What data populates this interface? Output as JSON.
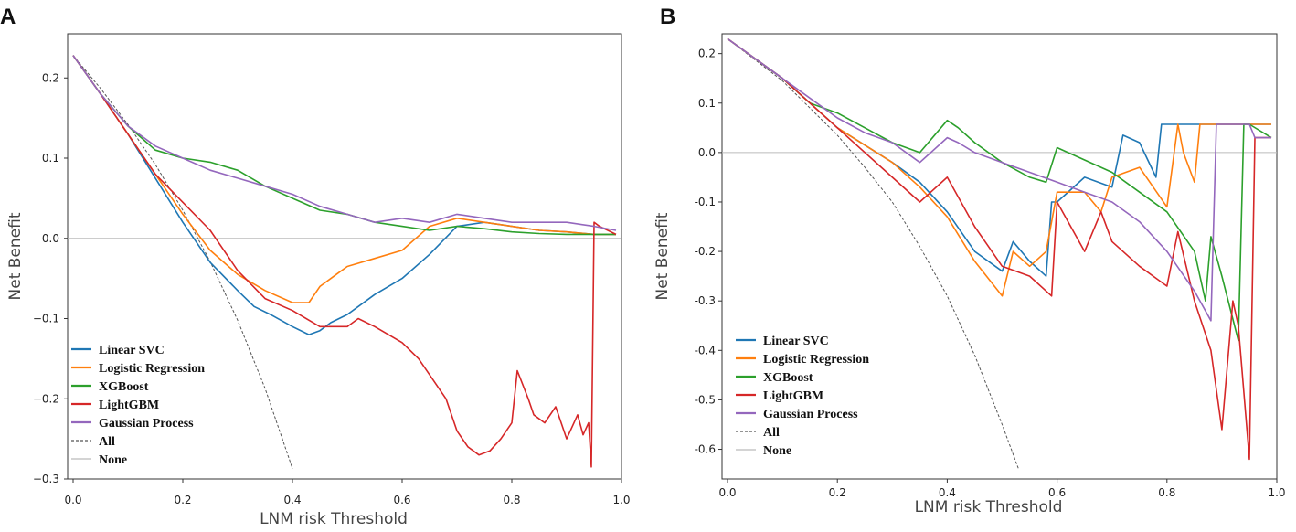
{
  "chart_data": [
    {
      "panel": "A",
      "type": "line",
      "title": "",
      "xlabel": "LNM risk Threshold",
      "ylabel": "Net Benefit",
      "xlim": [
        -0.01,
        1.0
      ],
      "ylim": [
        -0.3,
        0.255
      ],
      "xticks": [
        0.0,
        0.2,
        0.4,
        0.6,
        0.8,
        1.0
      ],
      "xtick_labels": [
        "0.0",
        "0.2",
        "0.4",
        "0.6",
        "0.8",
        "1.0"
      ],
      "yticks": [
        0.2,
        0.1,
        0.0,
        -0.1,
        -0.2,
        -0.3
      ],
      "ytick_labels": [
        "0.2",
        "0.1",
        "0.0",
        "−0.1",
        "−0.2",
        "−0.3"
      ],
      "legend_position": "lower-left",
      "series": [
        {
          "name": "Linear SVC",
          "color": "#1f77b4",
          "x": [
            0,
            0.05,
            0.1,
            0.15,
            0.2,
            0.25,
            0.3,
            0.33,
            0.36,
            0.4,
            0.43,
            0.45,
            0.47,
            0.5,
            0.55,
            0.6,
            0.65,
            0.7,
            0.75,
            0.8,
            0.85,
            0.9,
            0.95,
            0.99
          ],
          "y": [
            0.228,
            0.18,
            0.13,
            0.075,
            0.02,
            -0.03,
            -0.065,
            -0.085,
            -0.095,
            -0.11,
            -0.12,
            -0.115,
            -0.105,
            -0.095,
            -0.07,
            -0.05,
            -0.02,
            0.015,
            0.02,
            0.015,
            0.01,
            0.008,
            0.005,
            0.005
          ]
        },
        {
          "name": "Logistic Regression",
          "color": "#ff7f0e",
          "x": [
            0,
            0.05,
            0.1,
            0.15,
            0.2,
            0.25,
            0.3,
            0.35,
            0.4,
            0.43,
            0.45,
            0.48,
            0.5,
            0.55,
            0.6,
            0.65,
            0.7,
            0.75,
            0.8,
            0.85,
            0.9,
            0.95,
            0.99
          ],
          "y": [
            0.228,
            0.18,
            0.13,
            0.08,
            0.03,
            -0.015,
            -0.045,
            -0.065,
            -0.08,
            -0.08,
            -0.06,
            -0.045,
            -0.035,
            -0.025,
            -0.015,
            0.015,
            0.025,
            0.02,
            0.015,
            0.01,
            0.008,
            0.005,
            0.005
          ]
        },
        {
          "name": "XGBoost",
          "color": "#2ca02c",
          "x": [
            0,
            0.05,
            0.1,
            0.15,
            0.2,
            0.25,
            0.3,
            0.35,
            0.4,
            0.45,
            0.5,
            0.55,
            0.6,
            0.65,
            0.7,
            0.75,
            0.8,
            0.85,
            0.9,
            0.95,
            0.99
          ],
          "y": [
            0.228,
            0.18,
            0.14,
            0.11,
            0.1,
            0.095,
            0.085,
            0.065,
            0.05,
            0.035,
            0.03,
            0.02,
            0.015,
            0.01,
            0.015,
            0.012,
            0.008,
            0.006,
            0.005,
            0.005,
            0.005
          ]
        },
        {
          "name": "LightGBM",
          "color": "#d62728",
          "x": [
            0,
            0.05,
            0.1,
            0.15,
            0.2,
            0.25,
            0.3,
            0.35,
            0.4,
            0.45,
            0.5,
            0.52,
            0.55,
            0.6,
            0.63,
            0.65,
            0.68,
            0.7,
            0.72,
            0.74,
            0.76,
            0.78,
            0.8,
            0.81,
            0.83,
            0.84,
            0.86,
            0.88,
            0.9,
            0.92,
            0.93,
            0.94,
            0.945,
            0.95,
            0.96,
            0.99
          ],
          "y": [
            0.228,
            0.18,
            0.13,
            0.08,
            0.045,
            0.01,
            -0.04,
            -0.075,
            -0.09,
            -0.11,
            -0.11,
            -0.1,
            -0.11,
            -0.13,
            -0.15,
            -0.17,
            -0.2,
            -0.24,
            -0.26,
            -0.27,
            -0.265,
            -0.25,
            -0.23,
            -0.165,
            -0.2,
            -0.22,
            -0.23,
            -0.21,
            -0.25,
            -0.22,
            -0.245,
            -0.23,
            -0.285,
            0.02,
            0.015,
            0.005
          ]
        },
        {
          "name": "Gaussian Process",
          "color": "#9467bd",
          "x": [
            0,
            0.05,
            0.1,
            0.15,
            0.2,
            0.25,
            0.3,
            0.35,
            0.4,
            0.45,
            0.5,
            0.55,
            0.6,
            0.65,
            0.7,
            0.75,
            0.8,
            0.85,
            0.9,
            0.95,
            0.99
          ],
          "y": [
            0.228,
            0.18,
            0.14,
            0.115,
            0.1,
            0.085,
            0.075,
            0.065,
            0.055,
            0.04,
            0.03,
            0.02,
            0.025,
            0.02,
            0.03,
            0.025,
            0.02,
            0.02,
            0.02,
            0.015,
            0.01
          ]
        },
        {
          "name": "All",
          "color": "#555555",
          "style": "dashed",
          "x": [
            0,
            0.05,
            0.1,
            0.15,
            0.2,
            0.25,
            0.3,
            0.35,
            0.4
          ],
          "y": [
            0.228,
            0.187,
            0.142,
            0.092,
            0.035,
            -0.029,
            -0.102,
            -0.187,
            -0.287
          ]
        },
        {
          "name": "None",
          "color": "#bbbbbb",
          "x": [
            -0.01,
            1.0
          ],
          "y": [
            0,
            0
          ]
        }
      ]
    },
    {
      "panel": "B",
      "type": "line",
      "title": "",
      "xlabel": "LNM risk Threshold",
      "ylabel": "Net Benefit",
      "xlim": [
        -0.01,
        1.0
      ],
      "ylim": [
        -0.66,
        0.24
      ],
      "xticks": [
        0.0,
        0.2,
        0.4,
        0.6,
        0.8,
        1.0
      ],
      "xtick_labels": [
        "0.0",
        "0.2",
        "0.4",
        "0.6",
        "0.8",
        "1.0"
      ],
      "yticks": [
        0.2,
        0.1,
        0.0,
        -0.1,
        -0.2,
        -0.3,
        -0.4,
        -0.5,
        -0.6
      ],
      "ytick_labels": [
        "0.2",
        "0.1",
        "0.0",
        "-0.1",
        "-0.2",
        "-0.3",
        "-0.4",
        "-0.5",
        "-0.6"
      ],
      "legend_position": "lower-left",
      "series": [
        {
          "name": "Linear SVC",
          "color": "#1f77b4",
          "x": [
            0,
            0.1,
            0.2,
            0.3,
            0.35,
            0.4,
            0.45,
            0.5,
            0.52,
            0.55,
            0.58,
            0.59,
            0.6,
            0.65,
            0.7,
            0.72,
            0.75,
            0.78,
            0.79,
            0.8,
            0.9,
            0.99
          ],
          "y": [
            0.23,
            0.15,
            0.05,
            -0.02,
            -0.06,
            -0.12,
            -0.2,
            -0.24,
            -0.18,
            -0.22,
            -0.25,
            -0.1,
            -0.1,
            -0.05,
            -0.07,
            0.035,
            0.02,
            -0.05,
            0.057,
            0.057,
            0.057,
            0.057
          ]
        },
        {
          "name": "Logistic Regression",
          "color": "#ff7f0e",
          "x": [
            0,
            0.1,
            0.2,
            0.3,
            0.35,
            0.4,
            0.45,
            0.5,
            0.52,
            0.55,
            0.58,
            0.6,
            0.65,
            0.68,
            0.7,
            0.75,
            0.8,
            0.82,
            0.83,
            0.85,
            0.86,
            0.9,
            0.99
          ],
          "y": [
            0.23,
            0.15,
            0.05,
            -0.02,
            -0.07,
            -0.13,
            -0.22,
            -0.29,
            -0.2,
            -0.23,
            -0.2,
            -0.08,
            -0.08,
            -0.12,
            -0.05,
            -0.03,
            -0.11,
            0.057,
            0.0,
            -0.06,
            0.057,
            0.057,
            0.057
          ]
        },
        {
          "name": "XGBoost",
          "color": "#2ca02c",
          "x": [
            0,
            0.1,
            0.15,
            0.2,
            0.25,
            0.3,
            0.35,
            0.4,
            0.42,
            0.45,
            0.5,
            0.55,
            0.58,
            0.6,
            0.7,
            0.75,
            0.8,
            0.85,
            0.87,
            0.88,
            0.9,
            0.93,
            0.94,
            0.95,
            0.99
          ],
          "y": [
            0.23,
            0.15,
            0.1,
            0.08,
            0.05,
            0.02,
            0.0,
            0.065,
            0.05,
            0.02,
            -0.02,
            -0.05,
            -0.06,
            0.01,
            -0.04,
            -0.08,
            -0.12,
            -0.2,
            -0.3,
            -0.17,
            -0.25,
            -0.38,
            0.057,
            0.057,
            0.03
          ]
        },
        {
          "name": "LightGBM",
          "color": "#d62728",
          "x": [
            0,
            0.1,
            0.2,
            0.3,
            0.35,
            0.4,
            0.45,
            0.5,
            0.55,
            0.59,
            0.6,
            0.65,
            0.68,
            0.7,
            0.75,
            0.8,
            0.82,
            0.85,
            0.88,
            0.9,
            0.92,
            0.93,
            0.95,
            0.96,
            0.97,
            0.99
          ],
          "y": [
            0.23,
            0.15,
            0.05,
            -0.05,
            -0.1,
            -0.05,
            -0.15,
            -0.23,
            -0.25,
            -0.29,
            -0.1,
            -0.2,
            -0.12,
            -0.18,
            -0.23,
            -0.27,
            -0.16,
            -0.3,
            -0.4,
            -0.56,
            -0.3,
            -0.35,
            -0.62,
            0.03,
            0.03,
            0.03
          ]
        },
        {
          "name": "Gaussian Process",
          "color": "#9467bd",
          "x": [
            0,
            0.1,
            0.2,
            0.25,
            0.3,
            0.35,
            0.4,
            0.42,
            0.45,
            0.5,
            0.55,
            0.6,
            0.65,
            0.7,
            0.75,
            0.8,
            0.85,
            0.88,
            0.89,
            0.9,
            0.95,
            0.96,
            0.99
          ],
          "y": [
            0.23,
            0.15,
            0.07,
            0.04,
            0.02,
            -0.02,
            0.03,
            0.02,
            0.0,
            -0.02,
            -0.04,
            -0.06,
            -0.08,
            -0.1,
            -0.14,
            -0.2,
            -0.28,
            -0.34,
            0.057,
            0.057,
            0.057,
            0.03,
            0.03
          ]
        },
        {
          "name": "All",
          "color": "#555555",
          "style": "dashed",
          "x": [
            0,
            0.1,
            0.2,
            0.25,
            0.3,
            0.35,
            0.4,
            0.45,
            0.5,
            0.53
          ],
          "y": [
            0.23,
            0.145,
            0.035,
            -0.03,
            -0.1,
            -0.19,
            -0.29,
            -0.41,
            -0.55,
            -0.64
          ]
        },
        {
          "name": "None",
          "color": "#bbbbbb",
          "x": [
            -0.01,
            1.0
          ],
          "y": [
            0,
            0
          ]
        }
      ]
    }
  ]
}
